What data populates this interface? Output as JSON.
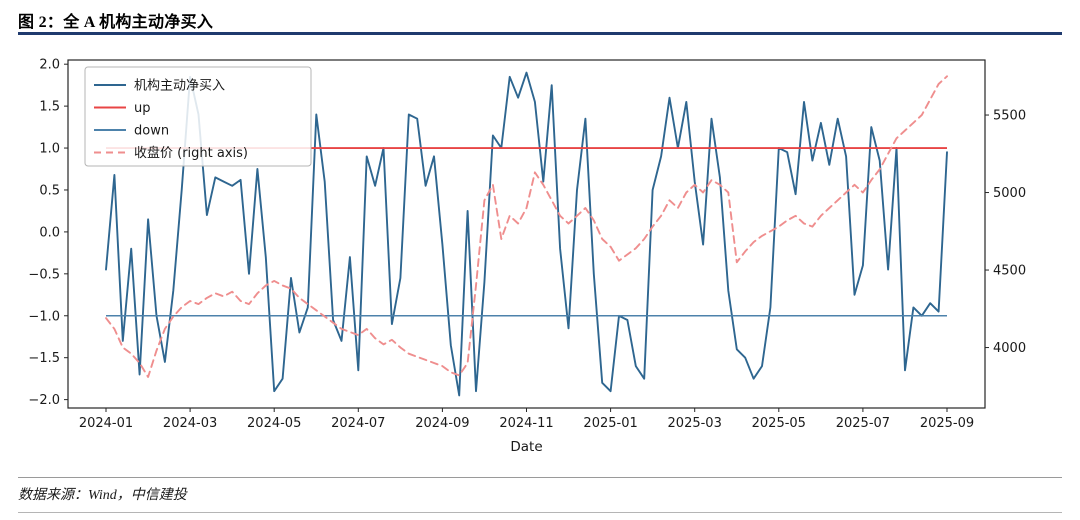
{
  "header": {
    "title": "图 2：全 A 机构主动净买入"
  },
  "footer": {
    "source": "数据来源：Wind，中信建投"
  },
  "chart_data": {
    "type": "line",
    "title": "全 A 机构主动净买入",
    "xlabel": "Date",
    "ylabel_left": "",
    "ylabel_right": "",
    "grid": false,
    "legend_position": "upper left",
    "x_tick_labels": [
      "2024-01",
      "2024-03",
      "2024-05",
      "2024-07",
      "2024-09",
      "2024-11",
      "2025-01",
      "2025-03",
      "2025-05",
      "2025-07",
      "2025-09"
    ],
    "left_axis": {
      "ticks": [
        -2.0,
        -1.5,
        -1.0,
        -0.5,
        0.0,
        0.5,
        1.0,
        1.5,
        2.0
      ],
      "lim": [
        -2.1,
        2.05
      ]
    },
    "right_axis": {
      "ticks": [
        4000,
        4500,
        5000,
        5500
      ],
      "lim": [
        3610,
        5855
      ]
    },
    "colors": {
      "main_blue": "#2e6690",
      "up_red": "#e84545",
      "down_blue": "#4d82ab",
      "close_pink": "#ef8e8e",
      "title_rule_navy": "#1f3a6e"
    },
    "series": [
      {
        "name": "机构主动净买入",
        "type": "line",
        "axis": "left",
        "color": "#2e6690",
        "width": 1.9,
        "dash": null,
        "values": [
          -0.45,
          0.68,
          -1.3,
          -0.2,
          -1.7,
          0.15,
          -1.0,
          -1.55,
          -0.7,
          0.5,
          1.85,
          1.4,
          0.2,
          0.65,
          0.6,
          0.55,
          0.62,
          -0.5,
          0.75,
          -0.3,
          -1.9,
          -1.75,
          -0.55,
          -1.2,
          -0.9,
          1.4,
          0.6,
          -1.05,
          -1.3,
          -0.3,
          -1.65,
          0.9,
          0.55,
          1.0,
          -1.1,
          -0.55,
          1.4,
          1.35,
          0.55,
          0.9,
          -0.15,
          -1.35,
          -1.95,
          0.25,
          -1.9,
          -0.6,
          1.15,
          1.0,
          1.85,
          1.6,
          1.9,
          1.55,
          0.6,
          1.75,
          -0.2,
          -1.15,
          0.5,
          1.35,
          -0.5,
          -1.8,
          -1.9,
          -1.0,
          -1.05,
          -1.6,
          -1.75,
          0.5,
          0.9,
          1.6,
          1.0,
          1.55,
          0.6,
          -0.15,
          1.35,
          0.65,
          -0.7,
          -1.4,
          -1.5,
          -1.75,
          -1.6,
          -0.9,
          1.0,
          0.95,
          0.45,
          1.55,
          0.85,
          1.3,
          0.8,
          1.35,
          0.9,
          -0.75,
          -0.4,
          1.25,
          0.85,
          -0.45,
          1.0,
          -1.65,
          -0.9,
          -1.0,
          -0.85,
          -0.95,
          0.95
        ]
      },
      {
        "name": "up",
        "type": "hline",
        "axis": "left",
        "color": "#e84545",
        "width": 1.9,
        "dash": null,
        "y": 1.0
      },
      {
        "name": "down",
        "type": "hline",
        "axis": "left",
        "color": "#4d82ab",
        "width": 1.6,
        "dash": null,
        "y": -1.0
      },
      {
        "name": "收盘价 (right axis)",
        "type": "line",
        "axis": "right",
        "color": "#ef8e8e",
        "width": 1.9,
        "dash": "7,5",
        "values": [
          4190,
          4120,
          4000,
          3960,
          3900,
          3810,
          3980,
          4120,
          4200,
          4260,
          4300,
          4280,
          4320,
          4350,
          4330,
          4360,
          4300,
          4280,
          4350,
          4400,
          4430,
          4400,
          4380,
          4320,
          4280,
          4240,
          4200,
          4160,
          4120,
          4100,
          4080,
          4120,
          4060,
          4020,
          4050,
          4000,
          3960,
          3940,
          3920,
          3900,
          3880,
          3840,
          3820,
          3900,
          4400,
          4950,
          5050,
          4700,
          4850,
          4800,
          4900,
          5130,
          5050,
          4950,
          4850,
          4800,
          4850,
          4900,
          4820,
          4700,
          4650,
          4560,
          4600,
          4640,
          4700,
          4780,
          4850,
          4950,
          4900,
          5000,
          5050,
          5000,
          5080,
          5050,
          5000,
          4550,
          4620,
          4680,
          4720,
          4750,
          4780,
          4820,
          4850,
          4800,
          4780,
          4850,
          4900,
          4950,
          5000,
          5050,
          5000,
          5080,
          5150,
          5250,
          5350,
          5400,
          5450,
          5500,
          5600,
          5700,
          5750
        ]
      }
    ]
  }
}
